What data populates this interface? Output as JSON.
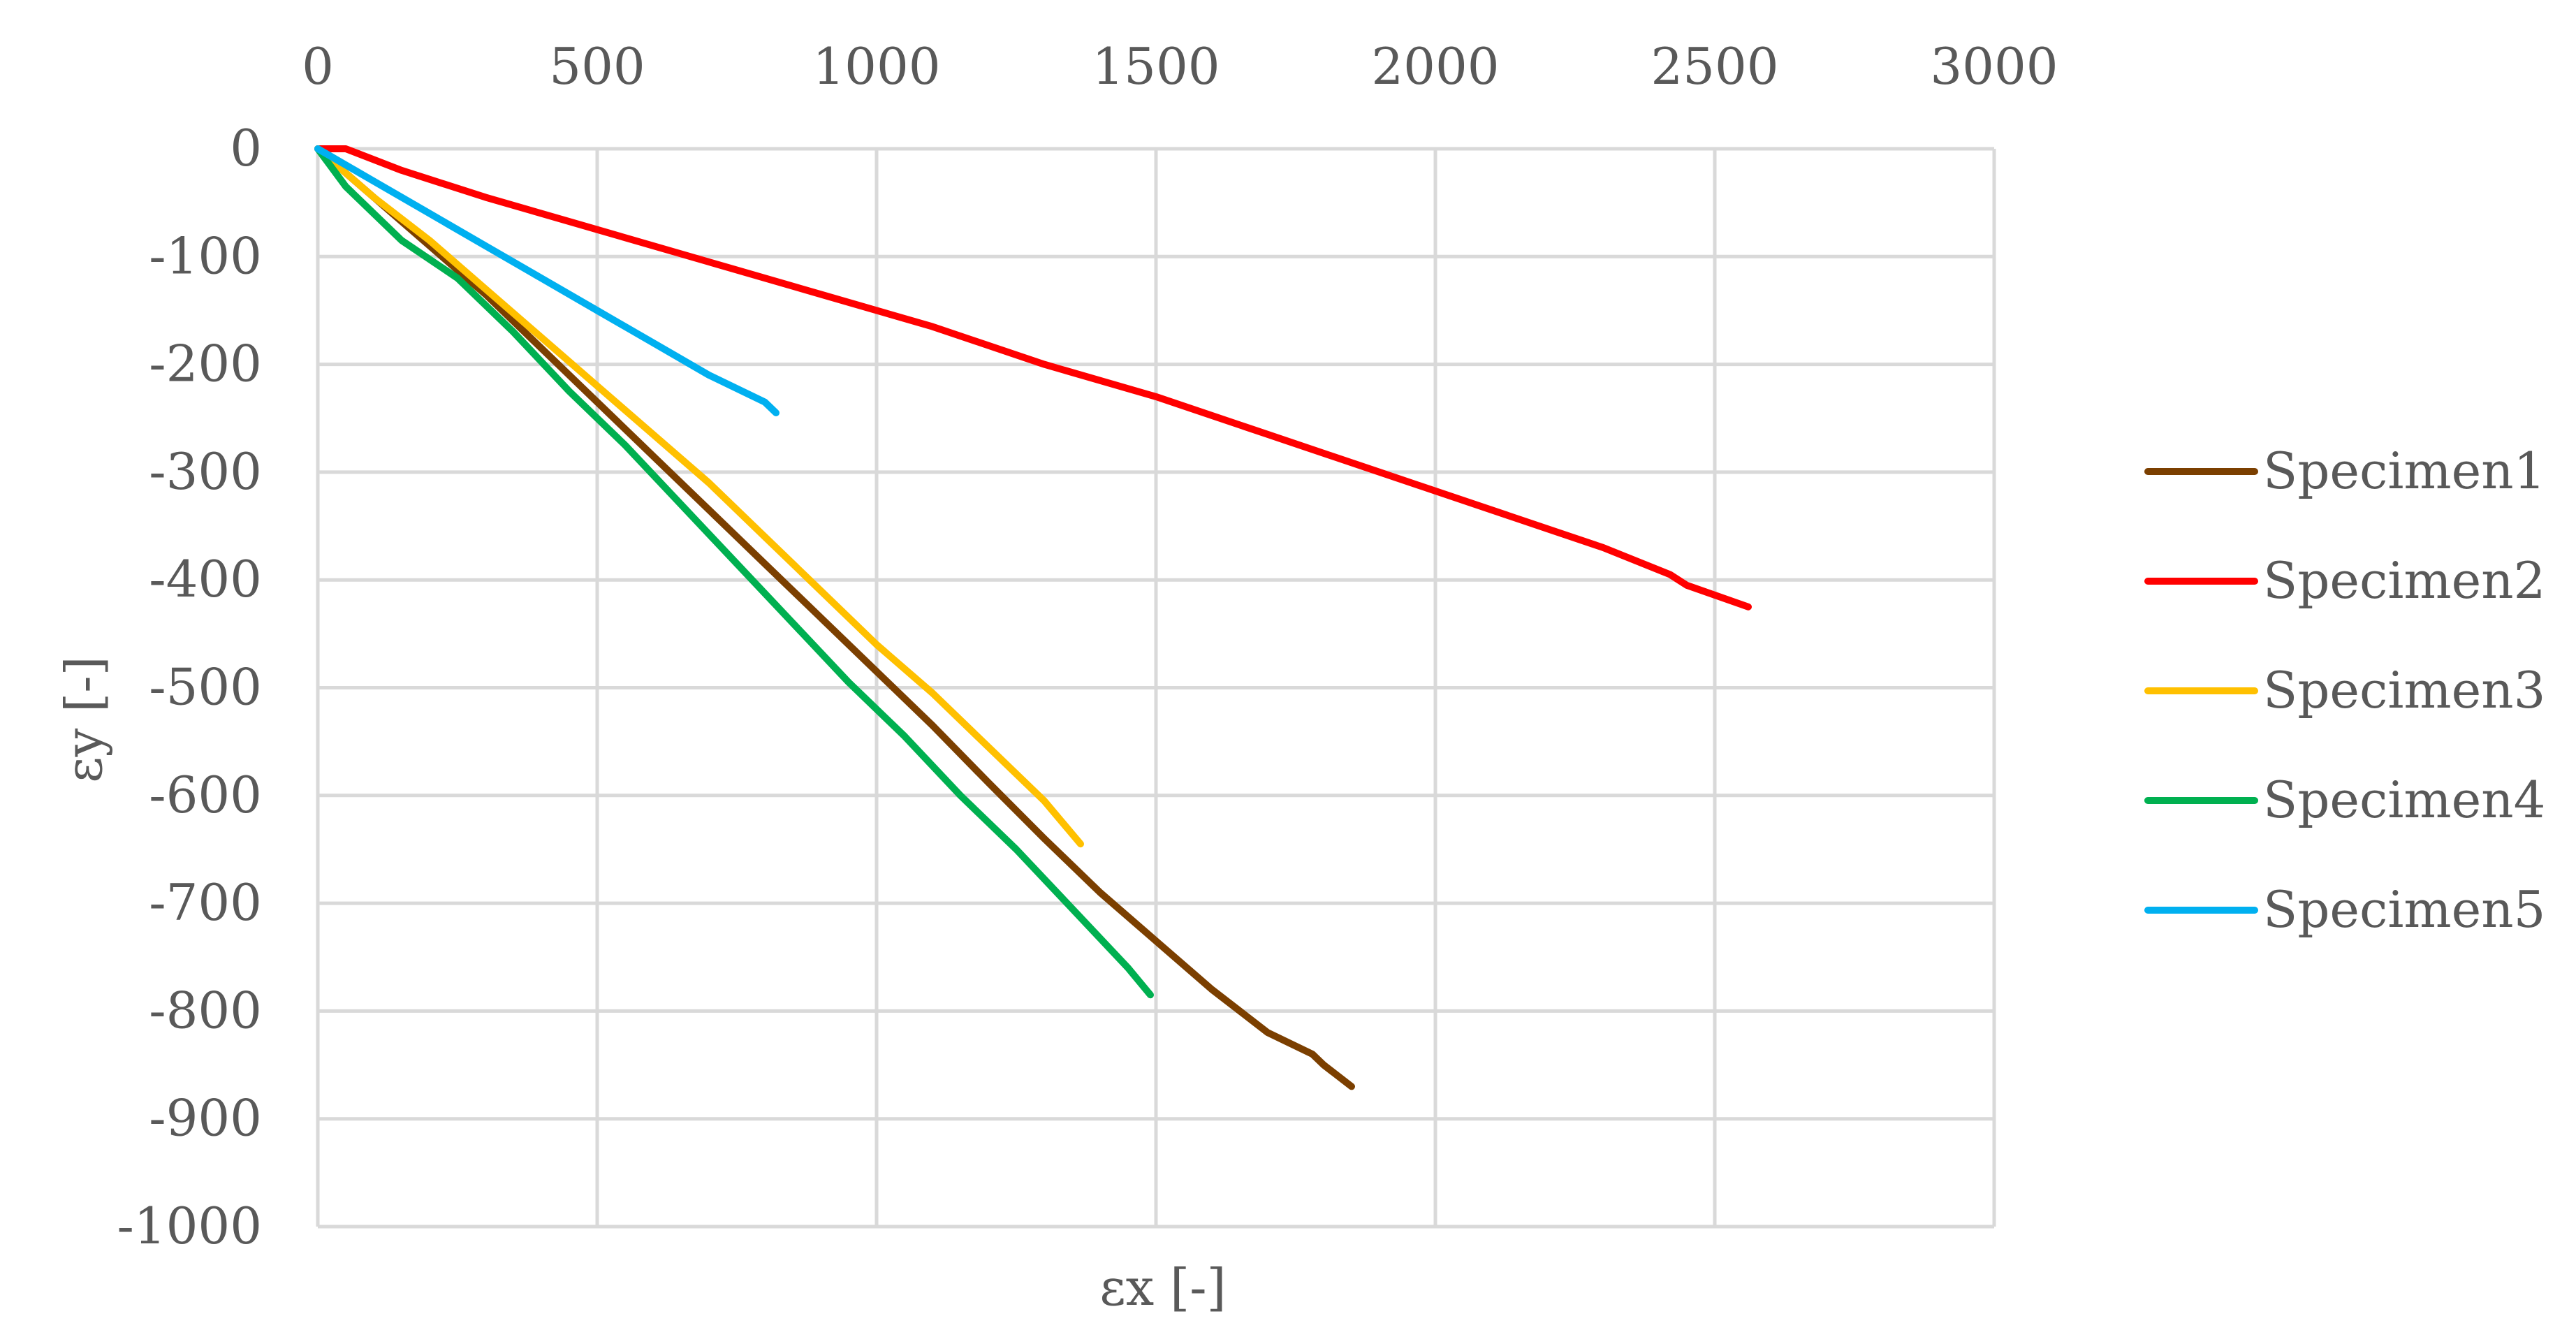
{
  "chart_data": {
    "type": "line",
    "xlabel": "εx [-]",
    "ylabel": "εy [-]",
    "xlim": [
      0,
      3000
    ],
    "ylim": [
      -1000,
      0
    ],
    "x_ticks": [
      0,
      500,
      1000,
      1500,
      2000,
      2500,
      3000
    ],
    "y_ticks": [
      0,
      -100,
      -200,
      -300,
      -400,
      -500,
      -600,
      -700,
      -800,
      -900,
      -1000
    ],
    "x_tick_labels": [
      "0",
      "500",
      "1000",
      "1500",
      "2000",
      "2500",
      "3000"
    ],
    "y_tick_labels": [
      "0",
      "-100",
      "-200",
      "-300",
      "-400",
      "-500",
      "-600",
      "-700",
      "-800",
      "-900",
      "-1000"
    ],
    "x_axis_position": "top",
    "grid": true,
    "legend_position": "right",
    "series": [
      {
        "name": "Specimen1",
        "color": "#7b3f00",
        "x": [
          0,
          100,
          200,
          300,
          400,
          500,
          600,
          700,
          800,
          900,
          1000,
          1100,
          1200,
          1300,
          1400,
          1500,
          1600,
          1700,
          1780,
          1800,
          1850
        ],
        "y": [
          0,
          -45,
          -90,
          -135,
          -185,
          -235,
          -285,
          -335,
          -385,
          -435,
          -485,
          -535,
          -588,
          -640,
          -690,
          -735,
          -780,
          -820,
          -840,
          -850,
          -870
        ]
      },
      {
        "name": "Specimen2",
        "color": "#ff0000",
        "x": [
          0,
          50,
          150,
          300,
          500,
          700,
          900,
          1100,
          1300,
          1500,
          1700,
          1900,
          2100,
          2300,
          2420,
          2450,
          2560
        ],
        "y": [
          0,
          0,
          -20,
          -45,
          -75,
          -105,
          -135,
          -165,
          -200,
          -230,
          -265,
          -300,
          -335,
          -370,
          -395,
          -405,
          -425
        ]
      },
      {
        "name": "Specimen3",
        "color": "#ffc000",
        "x": [
          0,
          100,
          200,
          300,
          400,
          500,
          600,
          700,
          800,
          900,
          1000,
          1100,
          1200,
          1300,
          1365
        ],
        "y": [
          0,
          -45,
          -85,
          -130,
          -175,
          -220,
          -265,
          -310,
          -360,
          -410,
          -460,
          -505,
          -555,
          -605,
          -645
        ]
      },
      {
        "name": "Specimen4",
        "color": "#00b050",
        "x": [
          0,
          50,
          150,
          250,
          350,
          450,
          550,
          650,
          750,
          850,
          950,
          1050,
          1150,
          1250,
          1350,
          1450,
          1490
        ],
        "y": [
          0,
          -35,
          -85,
          -120,
          -170,
          -225,
          -275,
          -330,
          -385,
          -440,
          -495,
          -545,
          -600,
          -650,
          -705,
          -760,
          -785
        ]
      },
      {
        "name": "Specimen5",
        "color": "#00b0f0",
        "x": [
          0,
          100,
          200,
          300,
          400,
          500,
          600,
          700,
          800,
          820
        ],
        "y": [
          0,
          -30,
          -60,
          -90,
          -120,
          -150,
          -180,
          -210,
          -235,
          -245
        ]
      }
    ]
  }
}
